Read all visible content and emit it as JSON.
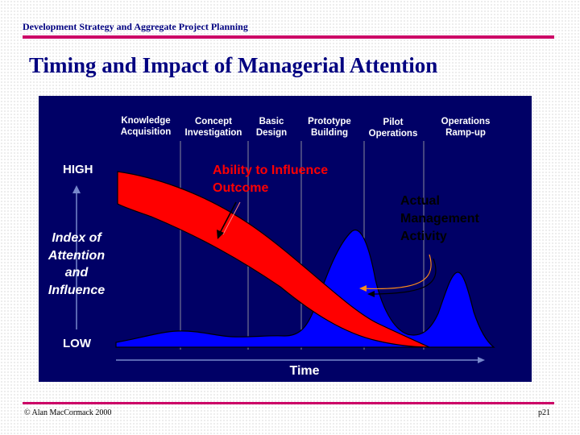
{
  "header": {
    "title": "Development Strategy and Aggregate Project Planning"
  },
  "slide": {
    "title": "Timing and Impact of Managerial Attention"
  },
  "diagram": {
    "phases": [
      {
        "line1": "Knowledge",
        "line2": "Acquisition"
      },
      {
        "line1": "Concept",
        "line2": "Investigation"
      },
      {
        "line1": "Basic",
        "line2": "Design"
      },
      {
        "line1": "Prototype",
        "line2": "Building"
      },
      {
        "line1": "Pilot",
        "line2": "Operations"
      },
      {
        "line1": "Operations",
        "line2": "Ramp-up"
      }
    ],
    "y_axis": {
      "high_label": "HIGH",
      "low_label": "LOW",
      "title_lines": [
        "Index of",
        "Attention",
        "and",
        "Influence"
      ]
    },
    "x_axis": {
      "label": "Time"
    },
    "ability_label_lines": [
      "Ability to Influence",
      "Outcome"
    ],
    "management_label_lines": [
      "Actual",
      "Management",
      "Activity"
    ],
    "colors": {
      "panel": "#000066",
      "ability_band": "#ff0000",
      "management_curve": "#0000ff",
      "titles": "#000080",
      "rules": "#cc0066"
    }
  },
  "footer": {
    "copyright": "© Alan MacCormack 2000",
    "page": "p21"
  }
}
